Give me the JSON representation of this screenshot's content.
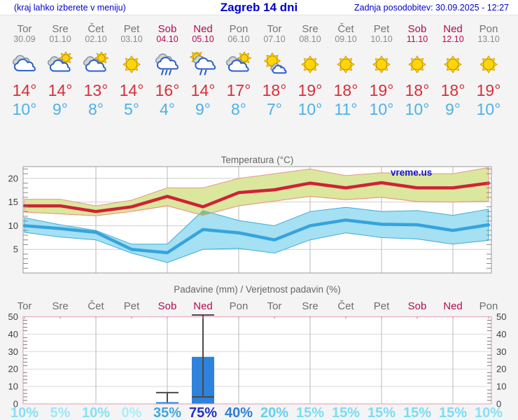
{
  "header": {
    "left_note": "(kraj lahko izberete v meniju)",
    "title": "Zagreb 14 dni",
    "updated": "Zadnja posodobitev: 30.09.2025 - 12:27"
  },
  "watermark": "vreme.us",
  "colors": {
    "header_text": "#0000cd",
    "weekend": "#b40a52",
    "weekday": "#757575",
    "tmax": "#d62f3b",
    "tmin": "#4db1e8",
    "max_line": "#cf2237",
    "max_band_fill": "#dbe79c",
    "max_band_edge": "#e9958b",
    "min_line": "#36a3dd",
    "min_band_fill": "#a5e0f3",
    "min_band_edge": "#3fabdc",
    "band_overlap": "#7cc487",
    "bar": "#2e82dc",
    "whisker": "#4a4a4a",
    "temp_frame": "#9a9a9a",
    "precip_frame": "#e5a9bc",
    "grid_v": "#b9b9b9",
    "grid_h": "#cfcfcf",
    "axis_text": "#3f3f3f",
    "chart_title": "#666666",
    "watermark_color": "#1212cd"
  },
  "days": [
    {
      "name": "Tor",
      "date": "30.09",
      "weekend": false,
      "icon": "cloudy",
      "tmax": "14°",
      "tmin": "10°",
      "prob": "10%",
      "prob_color": "#86e0f8"
    },
    {
      "name": "Sre",
      "date": "01.10",
      "weekend": false,
      "icon": "sun-cloud",
      "tmax": "14°",
      "tmin": "9°",
      "prob": "5%",
      "prob_color": "#9ce8fa"
    },
    {
      "name": "Čet",
      "date": "02.10",
      "weekend": false,
      "icon": "sun-cloud",
      "tmax": "13°",
      "tmin": "8°",
      "prob": "10%",
      "prob_color": "#86e0f8"
    },
    {
      "name": "Pet",
      "date": "03.10",
      "weekend": false,
      "icon": "sunny",
      "tmax": "14°",
      "tmin": "5°",
      "prob": "0%",
      "prob_color": "#a9edfc"
    },
    {
      "name": "Sob",
      "date": "04.10",
      "weekend": true,
      "icon": "rain",
      "tmax": "16°",
      "tmin": "4°",
      "prob": "35%",
      "prob_color": "#3da6e6"
    },
    {
      "name": "Ned",
      "date": "05.10",
      "weekend": true,
      "icon": "sun-rain",
      "tmax": "14°",
      "tmin": "9°",
      "prob": "75%",
      "prob_color": "#2133bf"
    },
    {
      "name": "Pon",
      "date": "06.10",
      "weekend": false,
      "icon": "sun-cloud",
      "tmax": "17°",
      "tmin": "8°",
      "prob": "40%",
      "prob_color": "#2d7fd8"
    },
    {
      "name": "Tor",
      "date": "07.10",
      "weekend": false,
      "icon": "sun-small-cloud",
      "tmax": "18°",
      "tmin": "7°",
      "prob": "20%",
      "prob_color": "#62d0f1"
    },
    {
      "name": "Sre",
      "date": "08.10",
      "weekend": false,
      "icon": "sunny",
      "tmax": "19°",
      "tmin": "10°",
      "prob": "15%",
      "prob_color": "#79dcf6"
    },
    {
      "name": "Čet",
      "date": "09.10",
      "weekend": false,
      "icon": "sunny",
      "tmax": "18°",
      "tmin": "11°",
      "prob": "15%",
      "prob_color": "#79dcf6"
    },
    {
      "name": "Pet",
      "date": "10.10",
      "weekend": false,
      "icon": "sunny",
      "tmax": "19°",
      "tmin": "10°",
      "prob": "15%",
      "prob_color": "#79dcf6"
    },
    {
      "name": "Sob",
      "date": "11.10",
      "weekend": true,
      "icon": "sunny",
      "tmax": "18°",
      "tmin": "10°",
      "prob": "15%",
      "prob_color": "#79dcf6"
    },
    {
      "name": "Ned",
      "date": "12.10",
      "weekend": true,
      "icon": "sunny",
      "tmax": "18°",
      "tmin": "9°",
      "prob": "15%",
      "prob_color": "#79dcf6"
    },
    {
      "name": "Pon",
      "date": "13.10",
      "weekend": false,
      "icon": "sunny",
      "tmax": "19°",
      "tmin": "10°",
      "prob": "10%",
      "prob_color": "#86e0f8"
    }
  ],
  "chart_data": [
    {
      "type": "line",
      "title": "Temperatura (°C)",
      "x": [
        "30.09",
        "01.10",
        "02.10",
        "03.10",
        "04.10",
        "05.10",
        "06.10",
        "07.10",
        "08.10",
        "09.10",
        "10.10",
        "11.10",
        "12.10",
        "13.10"
      ],
      "ylim": [
        0,
        22.5
      ],
      "yticks": [
        5,
        10,
        15,
        20
      ],
      "grid": true,
      "legend": "none",
      "series": [
        {
          "name": "max temperature",
          "values": [
            14.2,
            14.2,
            13,
            14,
            16.2,
            14,
            17,
            17.6,
            19,
            18,
            19.1,
            18,
            18,
            19
          ]
        },
        {
          "name": "max range high",
          "values": [
            15.6,
            15.6,
            14.2,
            15.4,
            18,
            18,
            20,
            21,
            22,
            20.6,
            21.2,
            21,
            21,
            22.3
          ]
        },
        {
          "name": "max range low",
          "values": [
            12.9,
            12.5,
            12.1,
            13,
            14.2,
            12.2,
            14.2,
            15.2,
            16.2,
            15.5,
            16,
            15.1,
            15,
            15.2
          ]
        },
        {
          "name": "min temperature",
          "values": [
            10,
            9.4,
            8.6,
            5,
            4.3,
            9.2,
            8.5,
            7,
            10,
            11.2,
            10.3,
            10.2,
            9,
            10.2
          ]
        },
        {
          "name": "min range high",
          "values": [
            11.7,
            10.2,
            9,
            6.1,
            6.1,
            13.2,
            11.1,
            10,
            13,
            13.9,
            13,
            13.2,
            12.2,
            13.5
          ]
        },
        {
          "name": "min range low",
          "values": [
            8.6,
            7.6,
            7,
            4.2,
            2.2,
            5,
            5.2,
            4.2,
            7,
            8.5,
            7.5,
            7.2,
            6.1,
            6.9
          ]
        }
      ]
    },
    {
      "type": "bar",
      "title": "Padavine (mm) / Verjetnost padavin (%)",
      "categories": [
        "Tor",
        "Sre",
        "Čet",
        "Pet",
        "Sob",
        "Ned",
        "Pon",
        "Tor",
        "Sre",
        "Čet",
        "Pet",
        "Sob",
        "Ned",
        "Pon"
      ],
      "values_mm": [
        0,
        0,
        0,
        0,
        1,
        27,
        0,
        0,
        0,
        0,
        0,
        0,
        0,
        0
      ],
      "whiskers": [
        {
          "day": 4,
          "lo": 1,
          "hi": 6.5,
          "lo_cap": false
        },
        {
          "day": 5,
          "lo": 4,
          "hi": 51,
          "lo_cap": true
        }
      ],
      "probabilities_pct": [
        10,
        5,
        10,
        0,
        35,
        75,
        40,
        20,
        15,
        15,
        15,
        15,
        15,
        10
      ],
      "ylim": [
        0,
        50
      ],
      "yticks": [
        0,
        10,
        20,
        30,
        40,
        50
      ],
      "grid": true
    }
  ]
}
